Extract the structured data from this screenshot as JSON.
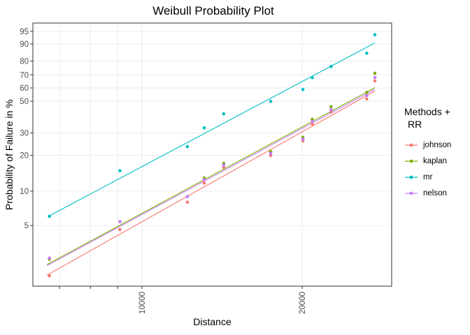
{
  "title": "Weibull Probability Plot",
  "axes": {
    "x": {
      "label": "Distance",
      "scale": "log10",
      "breaks": [
        7000,
        8000,
        9000,
        10000,
        20000
      ],
      "break_labels": [
        "",
        "",
        "",
        "10000",
        "20000"
      ]
    },
    "y": {
      "label": "Probability of Failure in %",
      "scale": "weibull-probability",
      "breaks": [
        95,
        90,
        80,
        70,
        60,
        50,
        30,
        20,
        10,
        5
      ]
    }
  },
  "legend": {
    "title_lines": [
      "Methods +",
      "RR"
    ],
    "items": [
      {
        "label": "johnson",
        "color": "#F8766D"
      },
      {
        "label": "kaplan",
        "color": "#7CAE00"
      },
      {
        "label": "mr",
        "color": "#00BFC4"
      },
      {
        "label": "nelson",
        "color": "#C77CFF"
      }
    ]
  },
  "chart_data": {
    "type": "scatter",
    "title": "Weibull Probability Plot",
    "xlabel": "Distance",
    "ylabel": "Probability of Failure in %",
    "x_scale": "log10",
    "y_scale": "weibull-probability",
    "xlim": [
      6240,
      29450
    ],
    "ylim": [
      1.4,
      97.2
    ],
    "grid": "major-only",
    "legend_position": "right",
    "x": [
      6700,
      9090,
      12170,
      13090,
      14240,
      17450,
      20060,
      20890,
      22660,
      26440,
      27390
    ],
    "series": [
      {
        "name": "johnson",
        "color": "#F8766D",
        "values": [
          1.78,
          4.6,
          8.02,
          11.73,
          15.97,
          19.96,
          26.06,
          34.99,
          42.52,
          51.73,
          65.43
        ]
      },
      {
        "name": "kaplan",
        "color": "#7CAE00",
        "values": [
          2.5,
          5.42,
          8.99,
          12.97,
          17.22,
          21.43,
          27.81,
          37.82,
          46.11,
          56.61,
          71.23
        ]
      },
      {
        "name": "mr",
        "color": "#00BFC4",
        "values": [
          6.03,
          14.93,
          23.52,
          32.78,
          41.28,
          49.93,
          58.79,
          67.9,
          76.17,
          84.98,
          93.87
        ]
      },
      {
        "name": "nelson",
        "color": "#C77CFF",
        "values": [
          2.56,
          5.41,
          8.97,
          12.57,
          16.63,
          20.69,
          26.93,
          36.52,
          44.08,
          54.3,
          68.04
        ]
      }
    ],
    "fit_lines": [
      {
        "name": "johnson",
        "color": "#F8766D",
        "x1": 6630,
        "p1": 1.8,
        "x2": 27390,
        "p2": 57.6
      },
      {
        "name": "kaplan",
        "color": "#7CAE00",
        "x1": 6630,
        "p1": 2.24,
        "x2": 27390,
        "p2": 60.2
      },
      {
        "name": "mr",
        "color": "#00BFC4",
        "x1": 6670,
        "p1": 6.03,
        "x2": 27390,
        "p2": 90.5
      },
      {
        "name": "nelson",
        "color": "#C77CFF",
        "x1": 6630,
        "p1": 2.19,
        "x2": 27390,
        "p2": 58.9
      }
    ]
  }
}
